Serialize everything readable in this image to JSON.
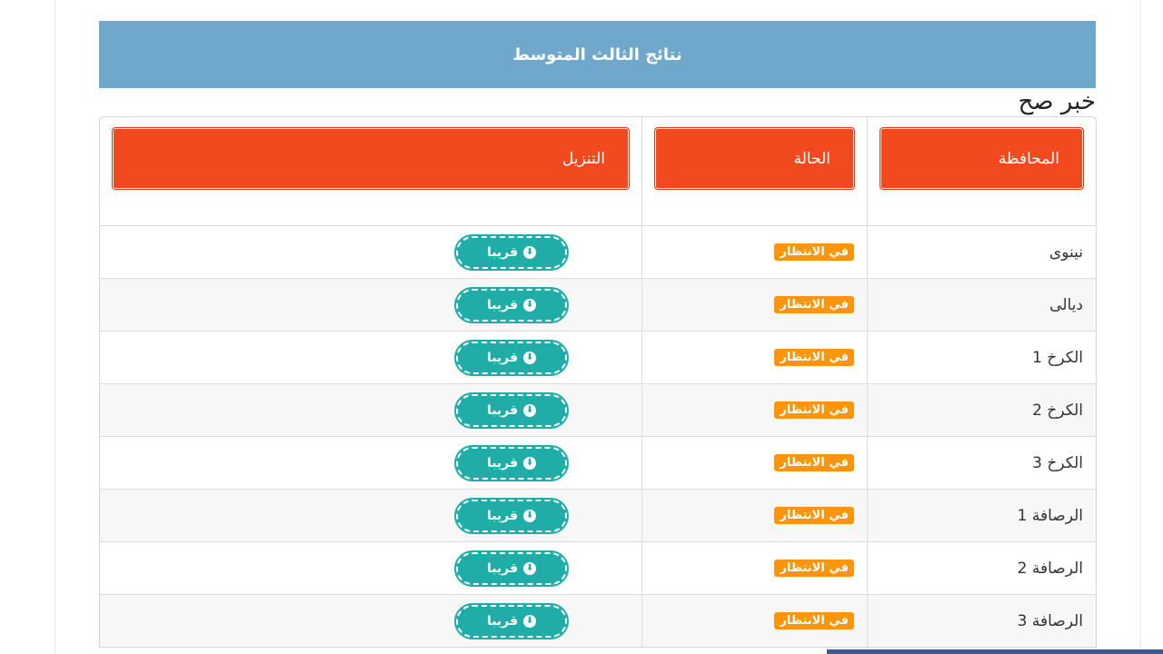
{
  "title": "نتائج الثالث المتوسط",
  "table": {
    "headers": [
      "المحافظة",
      "الحالة",
      "التنزيل"
    ],
    "rows": [
      {
        "province": "نينوى",
        "status": "في الانتظار",
        "download": "قريبا"
      },
      {
        "province": "ديالى",
        "status": "في الانتظار",
        "download": "قريبا"
      },
      {
        "province": "الكرخ 1",
        "status": "في الانتظار",
        "download": "قريبا"
      },
      {
        "province": "الكرخ 2",
        "status": "في الانتظار",
        "download": "قريبا"
      },
      {
        "province": "الكرخ 3",
        "status": "في الانتظار",
        "download": "قريبا"
      },
      {
        "province": "الرصافة 1",
        "status": "في الانتظار",
        "download": "قريبا"
      },
      {
        "province": "الرصافة 2",
        "status": "في الانتظار",
        "download": "قريبا"
      },
      {
        "province": "الرصافة 3",
        "status": "في الانتظار",
        "download": "قريبا"
      }
    ]
  },
  "watermark": "خبر صح",
  "colors": {
    "title_bar": "#6fa8cb",
    "header_button": "#f24a1f",
    "badge": "#fb950e",
    "download_button": "#20aca7"
  },
  "icons": {
    "download": "circle-arrow-down-icon"
  }
}
